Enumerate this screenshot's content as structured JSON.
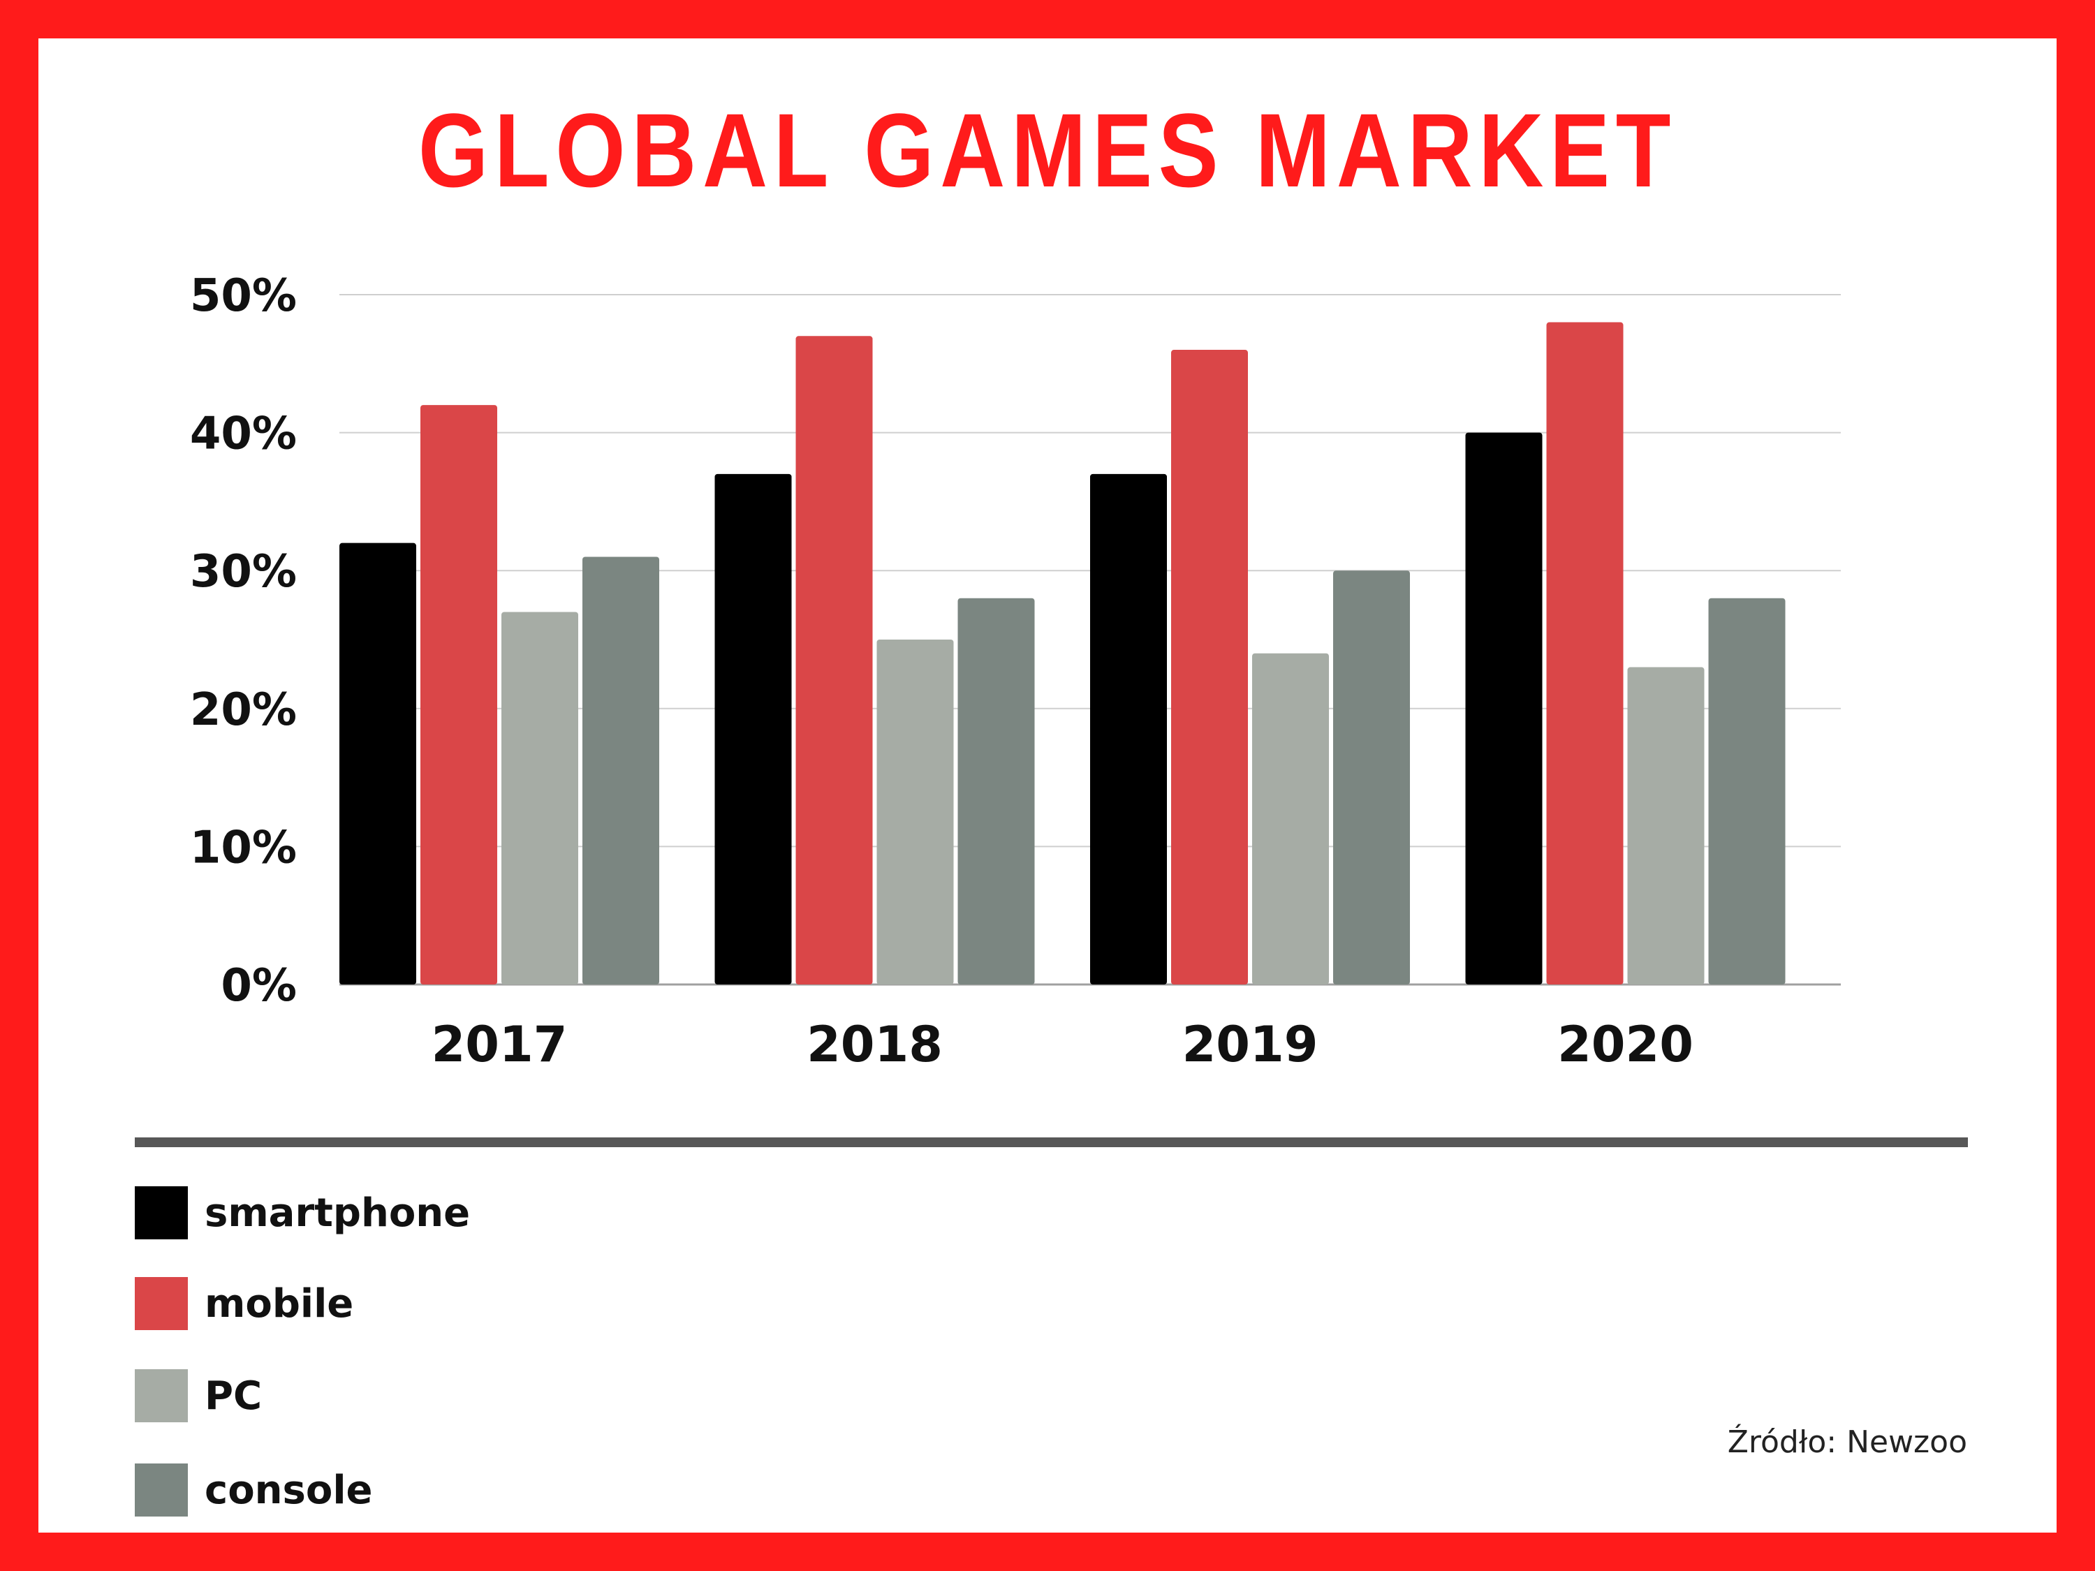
{
  "title": "GLOBAL GAMES MARKET",
  "source": "Źródło: Newzoo",
  "colors": {
    "frame": "#ff1b1b",
    "title": "#ff1b1b",
    "smartphone": "#000000",
    "mobile": "#da4648",
    "pc": "#a6aca5",
    "console": "#7b8681",
    "grid": "#cfcfcf",
    "divider": "#575757"
  },
  "legend": [
    {
      "label": "smartphone",
      "color": "#000000"
    },
    {
      "label": "mobile",
      "color": "#da4648"
    },
    {
      "label": "PC",
      "color": "#a6aca5"
    },
    {
      "label": "console",
      "color": "#7b8681"
    }
  ],
  "chart_data": {
    "type": "bar",
    "title": "GLOBAL GAMES MARKET",
    "categories": [
      "2017",
      "2018",
      "2019",
      "2020"
    ],
    "series": [
      {
        "name": "smartphone",
        "color": "#000000",
        "values": [
          32,
          37,
          37,
          40
        ]
      },
      {
        "name": "mobile",
        "color": "#da4648",
        "values": [
          42,
          47,
          46,
          48
        ]
      },
      {
        "name": "PC",
        "color": "#a6aca5",
        "values": [
          27,
          25,
          24,
          23
        ]
      },
      {
        "name": "console",
        "color": "#7b8681",
        "values": [
          31,
          28,
          30,
          28
        ]
      }
    ],
    "y_ticks": [
      "0%",
      "10%",
      "20%",
      "30%",
      "40%",
      "50%"
    ],
    "ylim": [
      0,
      50
    ],
    "y_unit": "%",
    "grid": true,
    "legend_position": "bottom-left",
    "xlabel": "",
    "ylabel": ""
  }
}
